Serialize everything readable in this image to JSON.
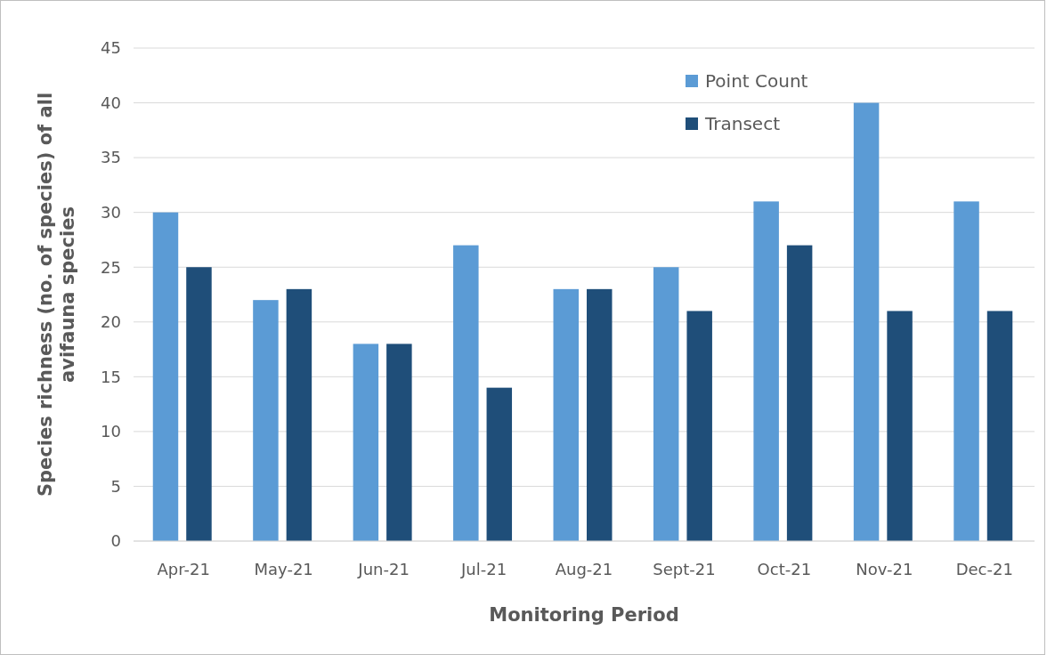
{
  "chart_data": {
    "type": "bar",
    "xlabel": "Monitoring Period",
    "ylabel": "Species richness (no. of species) of all avifauna species",
    "categories": [
      "Apr-21",
      "May-21",
      "Jun-21",
      "Jul-21",
      "Aug-21",
      "Sept-21",
      "Oct-21",
      "Nov-21",
      "Dec-21"
    ],
    "series": [
      {
        "name": "Point Count",
        "color": "#5b9bd5",
        "values": [
          30,
          22,
          18,
          27,
          23,
          25,
          31,
          40,
          31
        ]
      },
      {
        "name": "Transect",
        "color": "#1f4e79",
        "values": [
          25,
          23,
          18,
          14,
          23,
          21,
          27,
          21,
          21
        ]
      }
    ],
    "ylim": [
      0,
      45
    ],
    "yticks": [
      0,
      5,
      10,
      15,
      20,
      25,
      30,
      35,
      40,
      45
    ],
    "grid": "y",
    "legend": "top right"
  }
}
